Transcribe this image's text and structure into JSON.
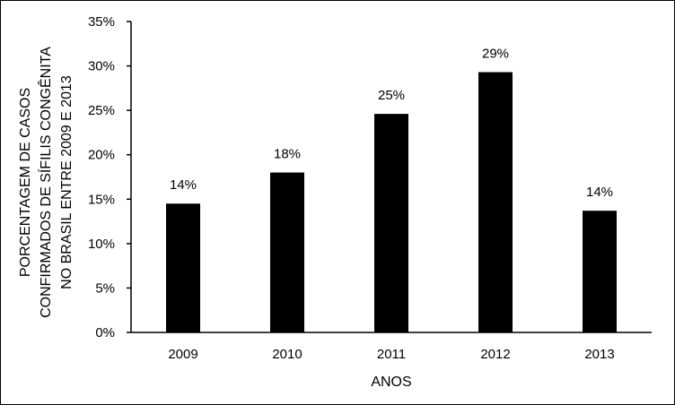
{
  "chart_data": {
    "type": "bar",
    "title": "",
    "xlabel": "ANOS",
    "ylabel_lines": [
      "PORCENTAGEM DE CASOS",
      "CONFIRMADOS DE SÍFILIS CONGÊNITA",
      "NO BRASIL ENTRE 2009 E 2013"
    ],
    "categories": [
      "2009",
      "2010",
      "2011",
      "2012",
      "2013"
    ],
    "values": [
      14.5,
      18.0,
      24.6,
      29.3,
      13.7
    ],
    "data_labels": [
      "14%",
      "18%",
      "25%",
      "29%",
      "14%"
    ],
    "ylim": [
      0,
      35
    ],
    "yticks": [
      "0%",
      "5%",
      "10%",
      "15%",
      "20%",
      "25%",
      "30%",
      "35%"
    ],
    "grid": false,
    "legend": "none",
    "bar_color": "#000000"
  }
}
